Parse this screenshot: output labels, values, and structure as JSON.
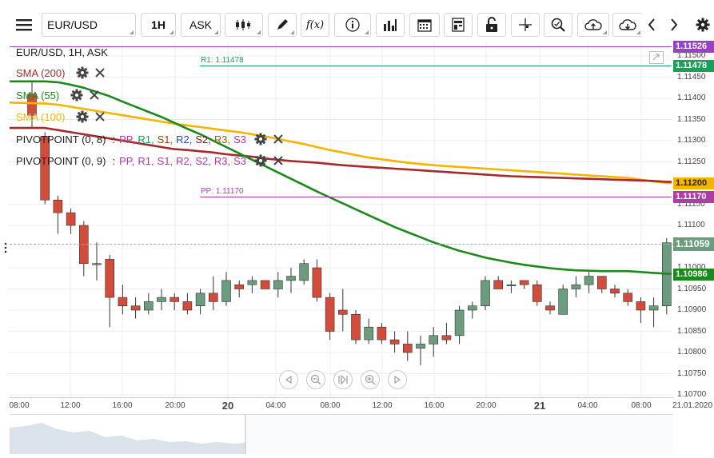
{
  "toolbar": {
    "symbol": "EUR/USD",
    "timeframe": "1H",
    "price_type": "ASK",
    "formula_label": "f(x)"
  },
  "legend": {
    "title": "EUR/USD, 1H, ASK",
    "sma200": "SMA (200)",
    "sma55": "SMA (55)",
    "sma100": "SMA (100)",
    "pivot1": {
      "name": "PIVOTPOINT (0, 8)",
      "parts": [
        "PP,",
        "R1,",
        "S1,",
        "R2,",
        "S2,",
        "R3,",
        "S3"
      ]
    },
    "pivot2": {
      "name": "PIVOTPOINT (0, 9)",
      "parts": [
        "PP,",
        "R1,",
        "S1,",
        "R2,",
        "S2,",
        "R3,",
        "S3"
      ]
    },
    "sep": ":"
  },
  "colors": {
    "sma200": "#a52a2a",
    "sma55": "#1a8a1a",
    "sma100": "#f5b400",
    "bull": "#6b9c7e",
    "bear": "#d24c3c",
    "pp": "#b03aa6",
    "r1": "#17a05a",
    "s1": "#8b4513",
    "r2": "#1f4fb0",
    "s2": "#7a1a1a",
    "r3": "#8b6914",
    "s3": "#b03aa6",
    "top_line": "#9b3fc7"
  },
  "price_labels": {
    "top": "1.11526",
    "r1": "1.11478",
    "sma100": "1.11200",
    "pp": "1.11170",
    "last": "1.11059",
    "sma55": "1.10986"
  },
  "line_labels": {
    "r1": "R1: 1.11478",
    "pp": "PP: 1.11170"
  },
  "yaxis": [
    "1.11500",
    "1.11450",
    "1.11400",
    "1.11350",
    "1.11300",
    "1.11250",
    "1.11150",
    "1.11100",
    "1.11000",
    "1.10950",
    "1.10900",
    "1.10850",
    "1.10800",
    "1.10750",
    "1.10700"
  ],
  "xaxis": [
    {
      "t": "08:00",
      "bold": false
    },
    {
      "t": "12:00",
      "bold": false
    },
    {
      "t": "16:00",
      "bold": false
    },
    {
      "t": "20:00",
      "bold": false
    },
    {
      "t": "20",
      "bold": true
    },
    {
      "t": "04:00",
      "bold": false
    },
    {
      "t": "08:00",
      "bold": false
    },
    {
      "t": "12:00",
      "bold": false
    },
    {
      "t": "16:00",
      "bold": false
    },
    {
      "t": "20:00",
      "bold": false
    },
    {
      "t": "21",
      "bold": true
    },
    {
      "t": "04:00",
      "bold": false
    },
    {
      "t": "08:00",
      "bold": false
    },
    {
      "t": "21.01.2020",
      "bold": false
    }
  ],
  "candles": [
    {
      "o": 1.1141,
      "h": 1.1144,
      "l": 1.1133,
      "c": 1.1136
    },
    {
      "o": 1.1131,
      "h": 1.1132,
      "l": 1.1115,
      "c": 1.1116
    },
    {
      "o": 1.1116,
      "h": 1.1117,
      "l": 1.1108,
      "c": 1.1113
    },
    {
      "o": 1.1113,
      "h": 1.1114,
      "l": 1.1108,
      "c": 1.111
    },
    {
      "o": 1.111,
      "h": 1.1111,
      "l": 1.1098,
      "c": 1.1101
    },
    {
      "o": 1.1101,
      "h": 1.1106,
      "l": 1.1097,
      "c": 1.1101
    },
    {
      "o": 1.1102,
      "h": 1.1103,
      "l": 1.1086,
      "c": 1.1093
    },
    {
      "o": 1.1093,
      "h": 1.1096,
      "l": 1.1089,
      "c": 1.1091
    },
    {
      "o": 1.1091,
      "h": 1.1093,
      "l": 1.1088,
      "c": 1.109
    },
    {
      "o": 1.109,
      "h": 1.1094,
      "l": 1.1089,
      "c": 1.1092
    },
    {
      "o": 1.1092,
      "h": 1.1095,
      "l": 1.109,
      "c": 1.1093
    },
    {
      "o": 1.1093,
      "h": 1.1094,
      "l": 1.109,
      "c": 1.1092
    },
    {
      "o": 1.1092,
      "h": 1.1094,
      "l": 1.1089,
      "c": 1.109
    },
    {
      "o": 1.1091,
      "h": 1.1095,
      "l": 1.1089,
      "c": 1.1094
    },
    {
      "o": 1.1094,
      "h": 1.1098,
      "l": 1.109,
      "c": 1.1092
    },
    {
      "o": 1.1092,
      "h": 1.1099,
      "l": 1.1091,
      "c": 1.1097
    },
    {
      "o": 1.1096,
      "h": 1.1097,
      "l": 1.1093,
      "c": 1.1095
    },
    {
      "o": 1.1096,
      "h": 1.1098,
      "l": 1.1094,
      "c": 1.1097
    },
    {
      "o": 1.1097,
      "h": 1.1097,
      "l": 1.1095,
      "c": 1.1095
    },
    {
      "o": 1.1095,
      "h": 1.1099,
      "l": 1.1093,
      "c": 1.1097
    },
    {
      "o": 1.1097,
      "h": 1.11,
      "l": 1.1094,
      "c": 1.1098
    },
    {
      "o": 1.1097,
      "h": 1.1102,
      "l": 1.1096,
      "c": 1.1101
    },
    {
      "o": 1.11,
      "h": 1.1102,
      "l": 1.1092,
      "c": 1.1093
    },
    {
      "o": 1.1093,
      "h": 1.1094,
      "l": 1.1083,
      "c": 1.1085
    },
    {
      "o": 1.109,
      "h": 1.1095,
      "l": 1.1085,
      "c": 1.1089
    },
    {
      "o": 1.1089,
      "h": 1.109,
      "l": 1.1082,
      "c": 1.1083
    },
    {
      "o": 1.1083,
      "h": 1.1088,
      "l": 1.1082,
      "c": 1.1086
    },
    {
      "o": 1.1086,
      "h": 1.1087,
      "l": 1.1082,
      "c": 1.1083
    },
    {
      "o": 1.1083,
      "h": 1.1085,
      "l": 1.108,
      "c": 1.1082
    },
    {
      "o": 1.1082,
      "h": 1.1085,
      "l": 1.1078,
      "c": 1.108
    },
    {
      "o": 1.1081,
      "h": 1.1084,
      "l": 1.1077,
      "c": 1.1082
    },
    {
      "o": 1.1082,
      "h": 1.1086,
      "l": 1.1079,
      "c": 1.1084
    },
    {
      "o": 1.1084,
      "h": 1.1087,
      "l": 1.1082,
      "c": 1.1083
    },
    {
      "o": 1.1084,
      "h": 1.1091,
      "l": 1.1082,
      "c": 1.109
    },
    {
      "o": 1.109,
      "h": 1.1092,
      "l": 1.1088,
      "c": 1.1091
    },
    {
      "o": 1.1091,
      "h": 1.1098,
      "l": 1.109,
      "c": 1.1097
    },
    {
      "o": 1.1097,
      "h": 1.1098,
      "l": 1.1095,
      "c": 1.1095
    },
    {
      "o": 1.1096,
      "h": 1.1097,
      "l": 1.1094,
      "c": 1.1096
    },
    {
      "o": 1.1097,
      "h": 1.1097,
      "l": 1.1095,
      "c": 1.1096
    },
    {
      "o": 1.1096,
      "h": 1.1097,
      "l": 1.1091,
      "c": 1.1092
    },
    {
      "o": 1.1091,
      "h": 1.1092,
      "l": 1.1089,
      "c": 1.109
    },
    {
      "o": 1.1089,
      "h": 1.1096,
      "l": 1.1089,
      "c": 1.1095
    },
    {
      "o": 1.1095,
      "h": 1.1098,
      "l": 1.1093,
      "c": 1.1096
    },
    {
      "o": 1.1096,
      "h": 1.1099,
      "l": 1.1094,
      "c": 1.1098
    },
    {
      "o": 1.1098,
      "h": 1.1098,
      "l": 1.1094,
      "c": 1.1095
    },
    {
      "o": 1.1095,
      "h": 1.1096,
      "l": 1.1093,
      "c": 1.1094
    },
    {
      "o": 1.1094,
      "h": 1.1095,
      "l": 1.1091,
      "c": 1.1092
    },
    {
      "o": 1.1092,
      "h": 1.1093,
      "l": 1.1087,
      "c": 1.109
    },
    {
      "o": 1.109,
      "h": 1.1093,
      "l": 1.1086,
      "c": 1.1091
    },
    {
      "o": 1.1091,
      "h": 1.1107,
      "l": 1.1089,
      "c": 1.11059
    }
  ],
  "sma": {
    "sma200": [
      1.1133,
      1.1133,
      1.11325,
      1.1132,
      1.11315,
      1.1131,
      1.11305,
      1.113,
      1.11295,
      1.1129,
      1.11285,
      1.1128,
      1.11278,
      1.11275,
      1.11272,
      1.11268,
      1.11265,
      1.11262,
      1.11258,
      1.11255,
      1.11252,
      1.1125,
      1.11248,
      1.11245,
      1.11242,
      1.1124,
      1.11238,
      1.11236,
      1.11234,
      1.11232,
      1.1123,
      1.11228,
      1.11226,
      1.11224,
      1.11222,
      1.1122,
      1.11218,
      1.11216,
      1.11215,
      1.11214,
      1.11213,
      1.11212,
      1.11211,
      1.1121,
      1.11209,
      1.11208,
      1.11207,
      1.11206,
      1.11205,
      1.11203
    ],
    "sma100": [
      1.1139,
      1.11388,
      1.11385,
      1.1138,
      1.11375,
      1.1137,
      1.11365,
      1.1136,
      1.11355,
      1.1135,
      1.11345,
      1.1134,
      1.11336,
      1.11332,
      1.11328,
      1.11324,
      1.1132,
      1.11315,
      1.1131,
      1.11304,
      1.11298,
      1.11292,
      1.11285,
      1.11278,
      1.11272,
      1.11266,
      1.1126,
      1.11256,
      1.11252,
      1.11248,
      1.11245,
      1.11242,
      1.1124,
      1.11238,
      1.11236,
      1.11234,
      1.11232,
      1.1123,
      1.11228,
      1.11226,
      1.11224,
      1.11222,
      1.1122,
      1.11218,
      1.11216,
      1.11214,
      1.11212,
      1.11208,
      1.11204,
      1.112
    ],
    "sma55": [
      1.1144,
      1.1144,
      1.11438,
      1.11432,
      1.11425,
      1.11415,
      1.11405,
      1.11392,
      1.1138,
      1.11368,
      1.11356,
      1.11342,
      1.11328,
      1.11315,
      1.113,
      1.11285,
      1.1127,
      1.11255,
      1.1124,
      1.11225,
      1.1121,
      1.11195,
      1.1118,
      1.11166,
      1.11152,
      1.11138,
      1.11124,
      1.1111,
      1.11096,
      1.11084,
      1.11072,
      1.1106,
      1.1105,
      1.1104,
      1.11032,
      1.11024,
      1.11018,
      1.11012,
      1.11007,
      1.11003,
      1.10999,
      1.10996,
      1.10994,
      1.10993,
      1.10992,
      1.10992,
      1.10992,
      1.1099,
      1.10988,
      1.10986
    ]
  }
}
